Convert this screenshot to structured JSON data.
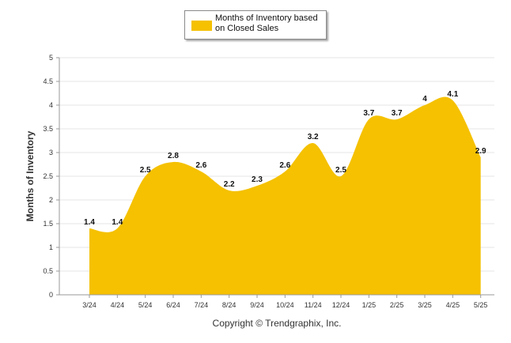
{
  "chart_data": {
    "type": "area",
    "categories": [
      "3/24",
      "4/24",
      "5/24",
      "6/24",
      "7/24",
      "8/24",
      "9/24",
      "10/24",
      "11/24",
      "12/24",
      "1/25",
      "2/25",
      "3/25",
      "4/25",
      "5/25"
    ],
    "series": [
      {
        "name": "Months of Inventory based on Closed Sales",
        "values": [
          1.4,
          1.4,
          2.5,
          2.8,
          2.6,
          2.2,
          2.3,
          2.6,
          3.2,
          2.5,
          3.7,
          3.7,
          4,
          4.1,
          2.9
        ],
        "data_labels": [
          "1.4",
          "1.4",
          "2.5",
          "2.8",
          "2.6",
          "2.2",
          "2.3",
          "2.6",
          "3.2",
          "2.5",
          "3.7",
          "3.7",
          "4",
          "4.1",
          "2.9"
        ]
      }
    ],
    "title": "",
    "xlabel": "",
    "ylabel": "Months of Inventory",
    "ylim": [
      0,
      5
    ],
    "yticks": [
      "0",
      "0.5",
      "1",
      "1.5",
      "2",
      "2.5",
      "3",
      "3.5",
      "4",
      "4.5",
      "5"
    ],
    "grid": true,
    "legend_position": "top-center",
    "fill_color": "#F5C100"
  },
  "legend": {
    "label": "Months of Inventory based on Closed Sales",
    "color": "#F5C100"
  },
  "footer": {
    "copyright": "Copyright © Trendgraphix, Inc."
  }
}
